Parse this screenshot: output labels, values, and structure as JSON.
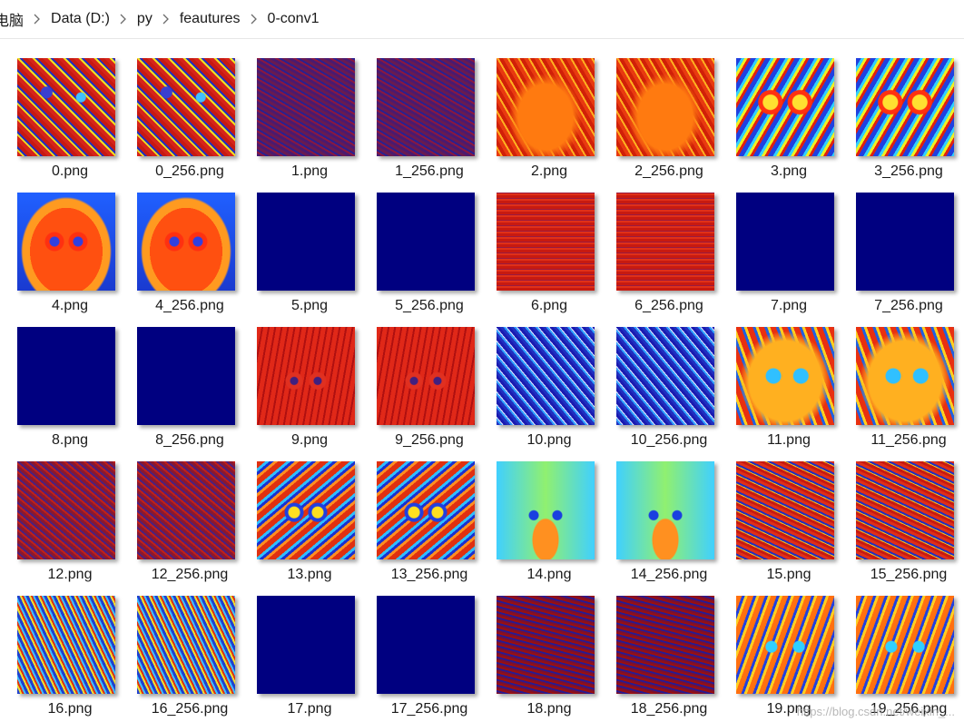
{
  "breadcrumb": [
    "电脑",
    "Data (D:)",
    "py",
    "feautures",
    "0-conv1"
  ],
  "files": [
    {
      "name": "0.png",
      "fill": "t-mixred"
    },
    {
      "name": "0_256.png",
      "fill": "t-mixred"
    },
    {
      "name": "1.png",
      "fill": "t-darkpurple"
    },
    {
      "name": "1_256.png",
      "fill": "t-darkpurple"
    },
    {
      "name": "2.png",
      "fill": "t-orange"
    },
    {
      "name": "2_256.png",
      "fill": "t-orange"
    },
    {
      "name": "3.png",
      "fill": "t-rainbow"
    },
    {
      "name": "3_256.png",
      "fill": "t-rainbow"
    },
    {
      "name": "4.png",
      "fill": "t-blueback"
    },
    {
      "name": "4_256.png",
      "fill": "t-blueback"
    },
    {
      "name": "5.png",
      "fill": "blank"
    },
    {
      "name": "5_256.png",
      "fill": "blank"
    },
    {
      "name": "6.png",
      "fill": "t-redlined"
    },
    {
      "name": "6_256.png",
      "fill": "t-redlined"
    },
    {
      "name": "7.png",
      "fill": "blank"
    },
    {
      "name": "7_256.png",
      "fill": "blank"
    },
    {
      "name": "8.png",
      "fill": "blank"
    },
    {
      "name": "8_256.png",
      "fill": "blank"
    },
    {
      "name": "9.png",
      "fill": "t-red"
    },
    {
      "name": "9_256.png",
      "fill": "t-red"
    },
    {
      "name": "10.png",
      "fill": "t-bluemix"
    },
    {
      "name": "10_256.png",
      "fill": "t-bluemix"
    },
    {
      "name": "11.png",
      "fill": "t-yellowblue"
    },
    {
      "name": "11_256.png",
      "fill": "t-yellowblue"
    },
    {
      "name": "12.png",
      "fill": "t-darkred"
    },
    {
      "name": "12_256.png",
      "fill": "t-darkred"
    },
    {
      "name": "13.png",
      "fill": "t-colorcat"
    },
    {
      "name": "13_256.png",
      "fill": "t-colorcat"
    },
    {
      "name": "14.png",
      "fill": "t-cyancat"
    },
    {
      "name": "14_256.png",
      "fill": "t-cyancat"
    },
    {
      "name": "15.png",
      "fill": "t-busyred"
    },
    {
      "name": "15_256.png",
      "fill": "t-busyred"
    },
    {
      "name": "16.png",
      "fill": "t-busyyellow"
    },
    {
      "name": "16_256.png",
      "fill": "t-busyyellow"
    },
    {
      "name": "17.png",
      "fill": "blank"
    },
    {
      "name": "17_256.png",
      "fill": "blank"
    },
    {
      "name": "18.png",
      "fill": "t-dotsred"
    },
    {
      "name": "18_256.png",
      "fill": "t-dotsred"
    },
    {
      "name": "19.png",
      "fill": "t-orangeblue"
    },
    {
      "name": "19_256.png",
      "fill": "t-orangeblue"
    }
  ],
  "watermark": "https://blog.csdn.net/weixin_..."
}
